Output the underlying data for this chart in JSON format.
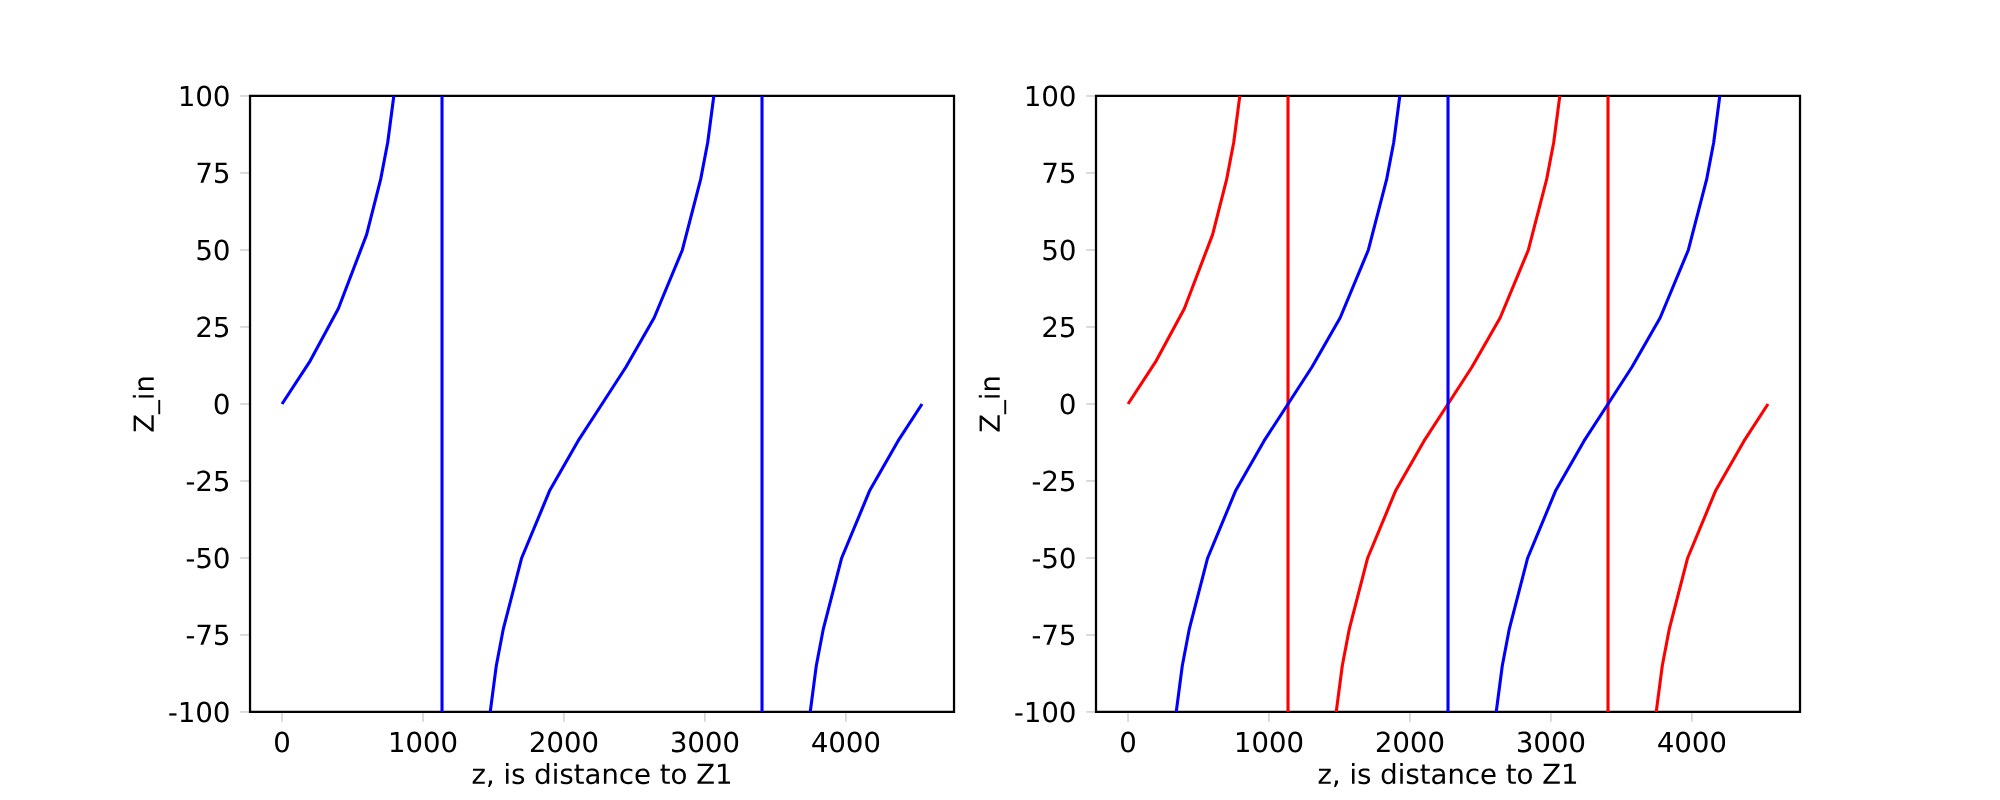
{
  "chart_data": [
    {
      "type": "line",
      "xlabel": "z, is distance to Z1",
      "ylabel": "Z_in",
      "xlim": [
        -227,
        4767
      ],
      "ylim": [
        -100,
        100
      ],
      "xticks": [
        0,
        1000,
        2000,
        3000,
        4000
      ],
      "yticks": [
        -100,
        -75,
        -50,
        -25,
        0,
        25,
        50,
        75,
        100
      ],
      "series": [
        {
          "color": "#0000ff",
          "x": [
            0,
            200,
            400,
            600,
            700,
            750,
            793,
            null,
            1135,
            1135,
            null,
            1477,
            1520,
            1570,
            1700,
            1900,
            2100,
            2270,
            2440,
            2640,
            2840,
            2970,
            3020,
            3063,
            null,
            3405,
            3405,
            null,
            3747,
            3790,
            3840,
            3970,
            4170,
            4370,
            4540
          ],
          "values": [
            0,
            14,
            31,
            55,
            73,
            85,
            100,
            null,
            100,
            -100,
            null,
            -100,
            -85,
            -73,
            -50,
            -28,
            -12,
            0,
            12,
            28,
            50,
            73,
            85,
            100,
            null,
            100,
            -100,
            null,
            -100,
            -85,
            -73,
            -50,
            -28,
            -12,
            0
          ]
        }
      ]
    },
    {
      "type": "line",
      "xlabel": "z, is distance to Z1",
      "ylabel": "Z_in",
      "xlim": [
        -227,
        4767
      ],
      "ylim": [
        -100,
        100
      ],
      "xticks": [
        0,
        1000,
        2000,
        3000,
        4000
      ],
      "yticks": [
        -100,
        -75,
        -50,
        -25,
        0,
        25,
        50,
        75,
        100
      ],
      "series": [
        {
          "color": "#ff0000",
          "x": [
            0,
            200,
            400,
            600,
            700,
            750,
            793,
            null,
            1135,
            1135,
            null,
            1477,
            1520,
            1570,
            1700,
            1900,
            2100,
            2270,
            2440,
            2640,
            2840,
            2970,
            3020,
            3063,
            null,
            3405,
            3405,
            null,
            3747,
            3790,
            3840,
            3970,
            4170,
            4370,
            4540
          ],
          "values": [
            0,
            14,
            31,
            55,
            73,
            85,
            100,
            null,
            100,
            -100,
            null,
            -100,
            -85,
            -73,
            -50,
            -28,
            -12,
            0,
            12,
            28,
            50,
            73,
            85,
            100,
            null,
            100,
            -100,
            null,
            -100,
            -85,
            -73,
            -50,
            -28,
            -12,
            0
          ]
        },
        {
          "color": "#0000ff",
          "x": [
            342,
            385,
            435,
            565,
            765,
            965,
            1135,
            1305,
            1505,
            1705,
            1835,
            1885,
            1928,
            null,
            2270,
            2270,
            null,
            2612,
            2655,
            2705,
            2835,
            3035,
            3235,
            3405,
            3575,
            3775,
            3975,
            4105,
            4155,
            4198
          ],
          "values": [
            -100,
            -85,
            -73,
            -50,
            -28,
            -12,
            0,
            12,
            28,
            50,
            73,
            85,
            100,
            null,
            100,
            -100,
            null,
            -100,
            -85,
            -73,
            -50,
            -28,
            -12,
            0,
            12,
            28,
            50,
            73,
            85,
            100
          ]
        }
      ]
    }
  ]
}
